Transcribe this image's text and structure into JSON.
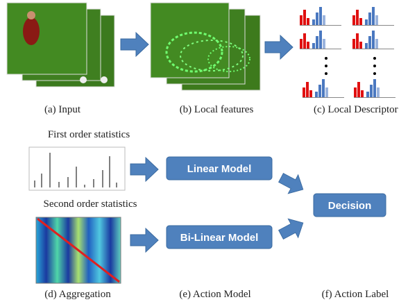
{
  "captions": [
    "(a) Input",
    "(b) Local features",
    "(c) Local Descriptor",
    "(d) Aggregation",
    "(e) Action Model",
    "(f) Action Label"
  ],
  "statistics": {
    "first": "First order statistics",
    "second": "Second order statistics"
  },
  "models": [
    "Linear Model",
    "Bi-Linear Model"
  ],
  "decision": "Decision"
}
